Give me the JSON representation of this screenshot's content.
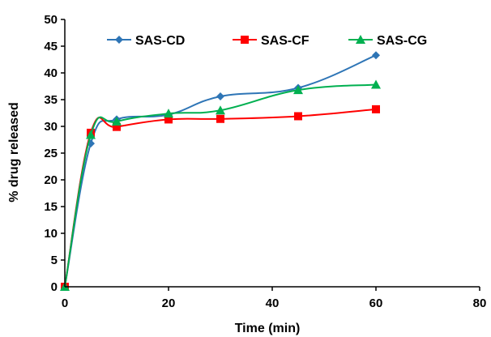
{
  "chart_data": {
    "type": "line",
    "title": "",
    "xlabel": "Time (min)",
    "ylabel": "% drug released",
    "xlim": [
      0,
      80
    ],
    "ylim": [
      0,
      50
    ],
    "xticks": [
      0,
      20,
      40,
      60,
      80
    ],
    "yticks": [
      0,
      5,
      10,
      15,
      20,
      25,
      30,
      35,
      40,
      45,
      50
    ],
    "grid": false,
    "legend_position": "top",
    "x": [
      0,
      5,
      10,
      20,
      30,
      45,
      60
    ],
    "series": [
      {
        "name": "SAS-CD",
        "color": "#2E75B6",
        "marker": "diamond",
        "values": [
          0,
          26.8,
          31.3,
          32.2,
          35.6,
          37.2,
          43.3
        ]
      },
      {
        "name": "SAS-CF",
        "color": "#FF0000",
        "marker": "square",
        "values": [
          0,
          28.8,
          29.9,
          31.3,
          31.4,
          31.9,
          33.2
        ]
      },
      {
        "name": "SAS-CG",
        "color": "#00B050",
        "marker": "triangle",
        "values": [
          0,
          28.4,
          30.9,
          32.4,
          33.0,
          36.8,
          37.8
        ]
      }
    ]
  }
}
